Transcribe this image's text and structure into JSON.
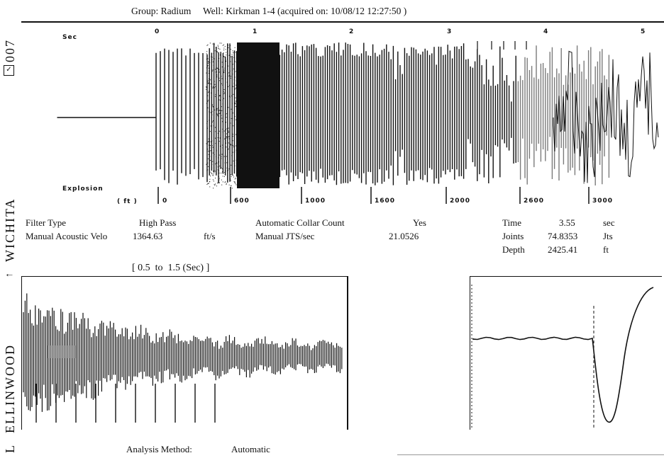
{
  "header": {
    "group": "Group: Radium",
    "well": "Well: Kirkman 1-4 (acquired on: 10/08/12 12:27:50 )"
  },
  "side_stamp": {
    "number": "007",
    "city": "WICHITA",
    "arrow": "↑",
    "name": "ELLINWOOD",
    "initial": "L"
  },
  "top_plot": {
    "time_unit": "Sec",
    "time_ticks": [
      "0",
      "1",
      "2",
      "3",
      "4",
      "5"
    ],
    "source_label": "Explosion",
    "depth_unit": "( ft )",
    "depth_ticks": [
      "0",
      "600",
      "1000",
      "1600",
      "2000",
      "2600",
      "3000"
    ]
  },
  "params": {
    "filter_type_label": "Filter Type",
    "filter_type_value": "High Pass",
    "velocity_label": "Manual Acoustic Velo",
    "velocity_value": "1364.63",
    "velocity_unit": "ft/s",
    "collar_label": "Automatic Collar Count",
    "collar_value": "Yes",
    "jts_label": "Manual JTS/sec",
    "jts_value": "21.0526",
    "time_label": "Time",
    "time_value": "3.55",
    "time_unit": "sec",
    "joints_label": "Joints",
    "joints_value": "74.8353",
    "joints_unit": "Jts",
    "depth_label": "Depth",
    "depth_value": "2425.41",
    "depth_unit": "ft"
  },
  "zoom_range": "[ 0.5  to  1.5 (Sec) ]",
  "analysis": {
    "label": "Analysis Method:",
    "value": "Automatic"
  },
  "colors": {
    "ink": "#111111",
    "paper": "#ffffff",
    "gray": "#9a9a9a"
  }
}
